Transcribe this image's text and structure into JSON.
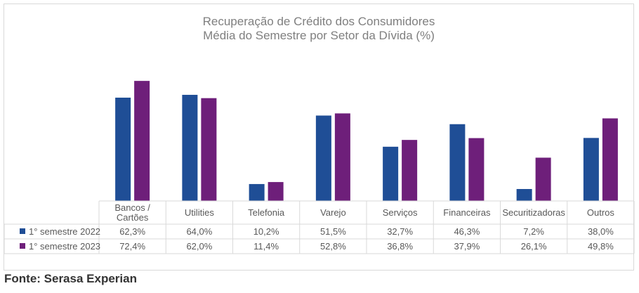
{
  "chart_data": {
    "type": "bar",
    "title": "Recuperação de Crédito dos Consumidores",
    "subtitle": "Média do Semestre por Setor da Dívida (%)",
    "categories": [
      "Bancos / Cartões",
      "Utilities",
      "Telefonia",
      "Varejo",
      "Serviços",
      "Financeiras",
      "Securitizadoras",
      "Outros"
    ],
    "category_lines": [
      [
        "Bancos /",
        "Cartões"
      ],
      [
        "Utilities"
      ],
      [
        "Telefonia"
      ],
      [
        "Varejo"
      ],
      [
        "Serviços"
      ],
      [
        "Financeiras"
      ],
      [
        "Securitizadoras"
      ],
      [
        "Outros"
      ]
    ],
    "series": [
      {
        "name": "1° semestre 2022",
        "color": "#1f4e96",
        "values": [
          62.3,
          64.0,
          10.2,
          51.5,
          32.7,
          46.3,
          7.2,
          38.0
        ],
        "labels": [
          "62,3%",
          "64,0%",
          "10,2%",
          "51,5%",
          "32,7%",
          "46,3%",
          "7,2%",
          "38,0%"
        ]
      },
      {
        "name": "1° semestre 2023",
        "color": "#6e1f7a",
        "values": [
          72.4,
          62.0,
          11.4,
          52.8,
          36.8,
          37.9,
          26.1,
          49.8
        ],
        "labels": [
          "72,4%",
          "62,0%",
          "11,4%",
          "52,8%",
          "36,8%",
          "37,9%",
          "26,1%",
          "49,8%"
        ]
      }
    ],
    "xlabel": "",
    "ylabel": "",
    "ylim": [
      0,
      80
    ],
    "grid": false,
    "legend": "data-table-left"
  },
  "source": "Fonte: Serasa Experian"
}
